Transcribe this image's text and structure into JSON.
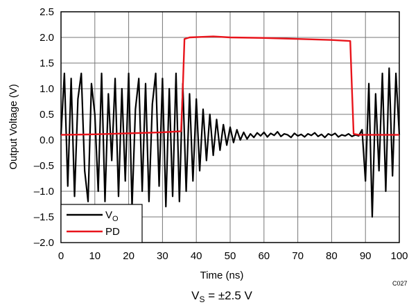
{
  "chart_data": {
    "type": "line",
    "xlabel": "Time (ns)",
    "ylabel": "Output Voltage (V)",
    "figure_id": "C027",
    "caption": [
      "V",
      "S",
      " = ±2.5 V"
    ],
    "xlim": [
      0,
      100
    ],
    "xticks": [
      0,
      10,
      20,
      30,
      40,
      50,
      60,
      70,
      80,
      90,
      100
    ],
    "ylim": [
      -2,
      2.5
    ],
    "yticks": [
      {
        "value": -2,
        "label": "–2.0"
      },
      {
        "value": -1.5,
        "label": "–1.5"
      },
      {
        "value": -1,
        "label": "–1.0"
      },
      {
        "value": -0.5,
        "label": "–0.5"
      },
      {
        "value": 0,
        "label": "0.0"
      },
      0.5,
      {
        "value": 1,
        "label": "1.0"
      },
      1.5,
      {
        "value": 2,
        "label": "2.0"
      },
      2.5
    ],
    "grid": true,
    "legend": "lower left",
    "series": [
      {
        "name": "VO",
        "color": "#000000",
        "x": [
          0,
          1,
          2,
          3,
          4,
          5,
          6,
          7,
          8,
          9,
          10,
          11,
          12,
          13,
          14,
          15,
          16,
          17,
          18,
          19,
          20,
          21,
          22,
          23,
          24,
          25,
          26,
          27,
          28,
          29,
          30,
          31,
          32,
          33,
          34,
          35,
          36,
          37,
          38,
          39,
          40,
          41,
          42,
          43,
          44,
          45,
          46,
          47,
          48,
          49,
          50,
          51,
          52,
          53,
          54,
          55,
          56,
          57,
          58,
          59,
          60,
          61,
          62,
          63,
          64,
          65,
          66,
          67,
          68,
          69,
          70,
          71,
          72,
          73,
          74,
          75,
          76,
          77,
          78,
          79,
          80,
          81,
          82,
          83,
          84,
          85,
          86,
          87,
          88,
          89,
          90,
          91,
          92,
          93,
          94,
          95,
          96,
          97,
          98,
          99,
          100
        ],
        "values": [
          0.1,
          1.3,
          -0.9,
          1.2,
          -1.1,
          0.8,
          1.3,
          -0.6,
          -1.2,
          1.1,
          0.5,
          -1.0,
          1.3,
          -1.2,
          0.9,
          -0.4,
          1.2,
          -1.1,
          1.0,
          -0.8,
          1.3,
          -1.3,
          0.6,
          1.2,
          -1.0,
          1.1,
          -1.2,
          0.7,
          1.3,
          -0.9,
          1.2,
          -1.3,
          1.0,
          -1.1,
          1.3,
          -1.2,
          1.1,
          -1.0,
          0.9,
          -0.8,
          0.8,
          -0.6,
          0.6,
          -0.4,
          0.5,
          -0.3,
          0.4,
          -0.2,
          0.3,
          -0.1,
          0.25,
          -0.05,
          0.2,
          0.0,
          0.15,
          0.02,
          0.12,
          0.05,
          0.14,
          0.08,
          0.15,
          0.06,
          0.13,
          0.09,
          0.16,
          0.07,
          0.12,
          0.1,
          0.05,
          0.13,
          0.08,
          0.11,
          0.06,
          0.12,
          0.09,
          0.14,
          0.07,
          0.11,
          0.05,
          0.12,
          0.09,
          0.13,
          0.06,
          0.1,
          0.08,
          0.12,
          0.07,
          0.1,
          0.08,
          0.2,
          -0.8,
          1.1,
          -1.5,
          0.9,
          -0.6,
          1.3,
          -1.0,
          1.4,
          -0.7,
          1.3,
          0.1
        ]
      },
      {
        "name": "PD",
        "color": "#e8141b",
        "x": [
          0,
          10,
          20,
          30,
          35.5,
          36,
          36.5,
          38,
          45,
          50,
          60,
          70,
          80,
          85.5,
          86,
          86.5,
          88,
          100
        ],
        "values": [
          0.1,
          0.11,
          0.13,
          0.15,
          0.17,
          1.0,
          1.97,
          2.0,
          2.02,
          2.0,
          1.99,
          1.97,
          1.95,
          1.93,
          1.0,
          0.12,
          0.1,
          0.1
        ]
      }
    ]
  }
}
